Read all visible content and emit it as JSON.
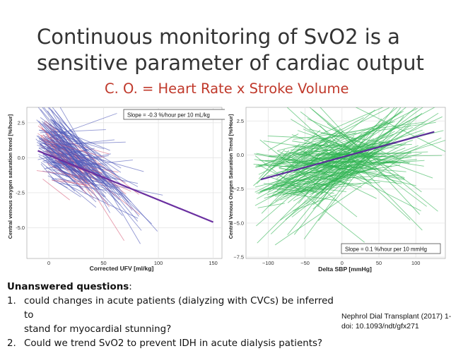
{
  "slide": {
    "title_line1": "Continuous monitoring of SvO2 is a",
    "title_line2": "sensitive parameter of cardiac output",
    "subtitle": "C. O. = Heart Rate x Stroke Volume"
  },
  "questions": {
    "heading": "Unanswered questions",
    "heading_suffix": ":",
    "items": [
      {
        "num": "1.",
        "line1": "could changes in acute patients (dialyzing with CVCs) be inferred to",
        "line2": "stand for myocardial stunning?"
      },
      {
        "num": "2.",
        "line1": "Could we trend SvO2 to prevent IDH in acute dialysis patients?",
        "line2": ""
      }
    ]
  },
  "citation": {
    "line1": "Nephrol Dial Transplant (2017) 1-",
    "line2": "doi: 10.1093/ndt/gfx271"
  },
  "colors": {
    "left_lines": "#4e57b8",
    "left_lines_alt": "#d9607a",
    "left_trend": "#6a2fa0",
    "right_lines": "#2fb350",
    "right_trend": "#5b2d99",
    "subtitle": "#c0392b"
  },
  "chart_data": [
    {
      "type": "line",
      "xlabel": "Corrected UFV [ml/kg]",
      "ylabel": "Central venous oxygen saturation trend [%/hour]",
      "xlim": [
        -20,
        158
      ],
      "ylim": [
        -7.2,
        3.6
      ],
      "xticks": [
        0,
        50,
        100,
        150
      ],
      "yticks": [
        2.5,
        0.0,
        -2.5,
        -5.0
      ],
      "xtick_labels": [
        "0",
        "50",
        "100",
        "150"
      ],
      "ytick_labels": [
        "2.5",
        "0.0",
        "-2.5",
        "-5.0"
      ],
      "annotation": "Slope = -0.3 %/hour per 10 mL/kg",
      "grid": true,
      "trend": {
        "x": [
          -10,
          150
        ],
        "y": [
          0.5,
          -4.6
        ]
      }
    },
    {
      "type": "line",
      "xlabel": "Delta SBP [mmHg]",
      "ylabel": "Central Venous Oxygen Saturation Trend [%/Hour]",
      "xlim": [
        -130,
        140
      ],
      "ylim": [
        -7.6,
        3.5
      ],
      "xticks": [
        -100,
        -50,
        0,
        50,
        100
      ],
      "yticks": [
        2.5,
        0.0,
        -2.5,
        -5.0,
        -7.5
      ],
      "xtick_labels": [
        "−100",
        "−50",
        "0",
        "50",
        "100"
      ],
      "ytick_labels": [
        "2.5",
        "0.0",
        "−2.5",
        "−5.0",
        "−7.5"
      ],
      "annotation": "Slope = 0.1 %/hour per 10 mmHg",
      "grid": true,
      "trend": {
        "x": [
          -110,
          125
        ],
        "y": [
          -1.8,
          1.7
        ]
      }
    }
  ]
}
